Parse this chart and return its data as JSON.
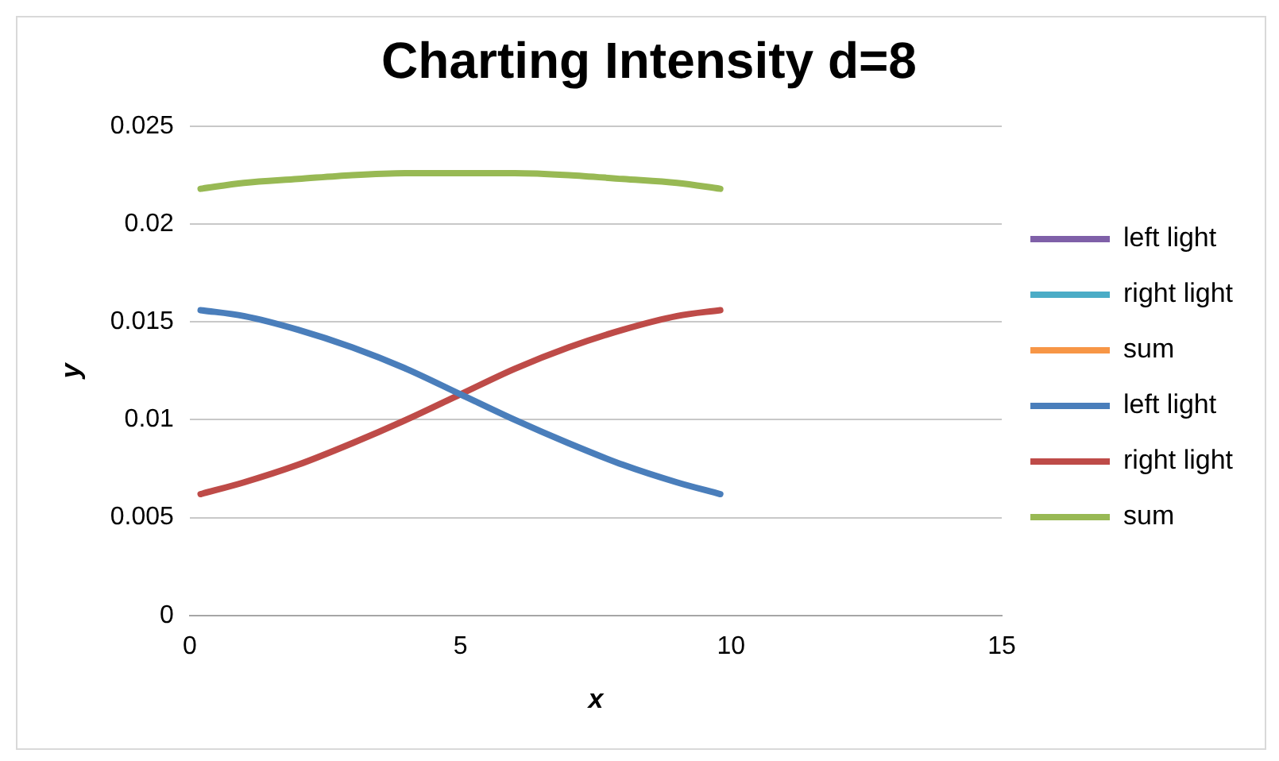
{
  "chart_data": {
    "type": "line",
    "title": "Charting Intensity d=8",
    "xlabel": "x",
    "ylabel": "y",
    "x": [
      0.2,
      1,
      2,
      3,
      4,
      5,
      6,
      7,
      8,
      9,
      9.8
    ],
    "series": [
      {
        "name": "left light",
        "color": "#7f60a8",
        "values": [
          null,
          null,
          null,
          null,
          null,
          null,
          null,
          null,
          null,
          null,
          null
        ]
      },
      {
        "name": "right light",
        "color": "#4bacc6",
        "values": [
          null,
          null,
          null,
          null,
          null,
          null,
          null,
          null,
          null,
          null,
          null
        ]
      },
      {
        "name": "sum",
        "color": "#f79646",
        "values": [
          null,
          null,
          null,
          null,
          null,
          null,
          null,
          null,
          null,
          null,
          null
        ]
      },
      {
        "name": "left light",
        "color": "#4a7ebb",
        "values": [
          0.0156,
          0.0153,
          0.0146,
          0.0137,
          0.0126,
          0.0113,
          0.01,
          0.0088,
          0.0077,
          0.0068,
          0.0062
        ]
      },
      {
        "name": "right light",
        "color": "#be4b48",
        "values": [
          0.0062,
          0.0068,
          0.0077,
          0.0088,
          0.01,
          0.0113,
          0.0126,
          0.0137,
          0.0146,
          0.0153,
          0.0156
        ]
      },
      {
        "name": "sum",
        "color": "#98b954",
        "values": [
          0.0218,
          0.0221,
          0.0223,
          0.0225,
          0.0226,
          0.0226,
          0.0226,
          0.0225,
          0.0223,
          0.0221,
          0.0218
        ]
      }
    ],
    "xlim": [
      0,
      15
    ],
    "xticks": [
      0,
      5,
      10,
      15
    ],
    "ylim": [
      0,
      0.025
    ],
    "yticks": [
      0,
      "0.005",
      0.01,
      0.015,
      0.02,
      0.025
    ],
    "grid": "y",
    "legend": "right",
    "marker": "none",
    "line_style": "solid"
  }
}
